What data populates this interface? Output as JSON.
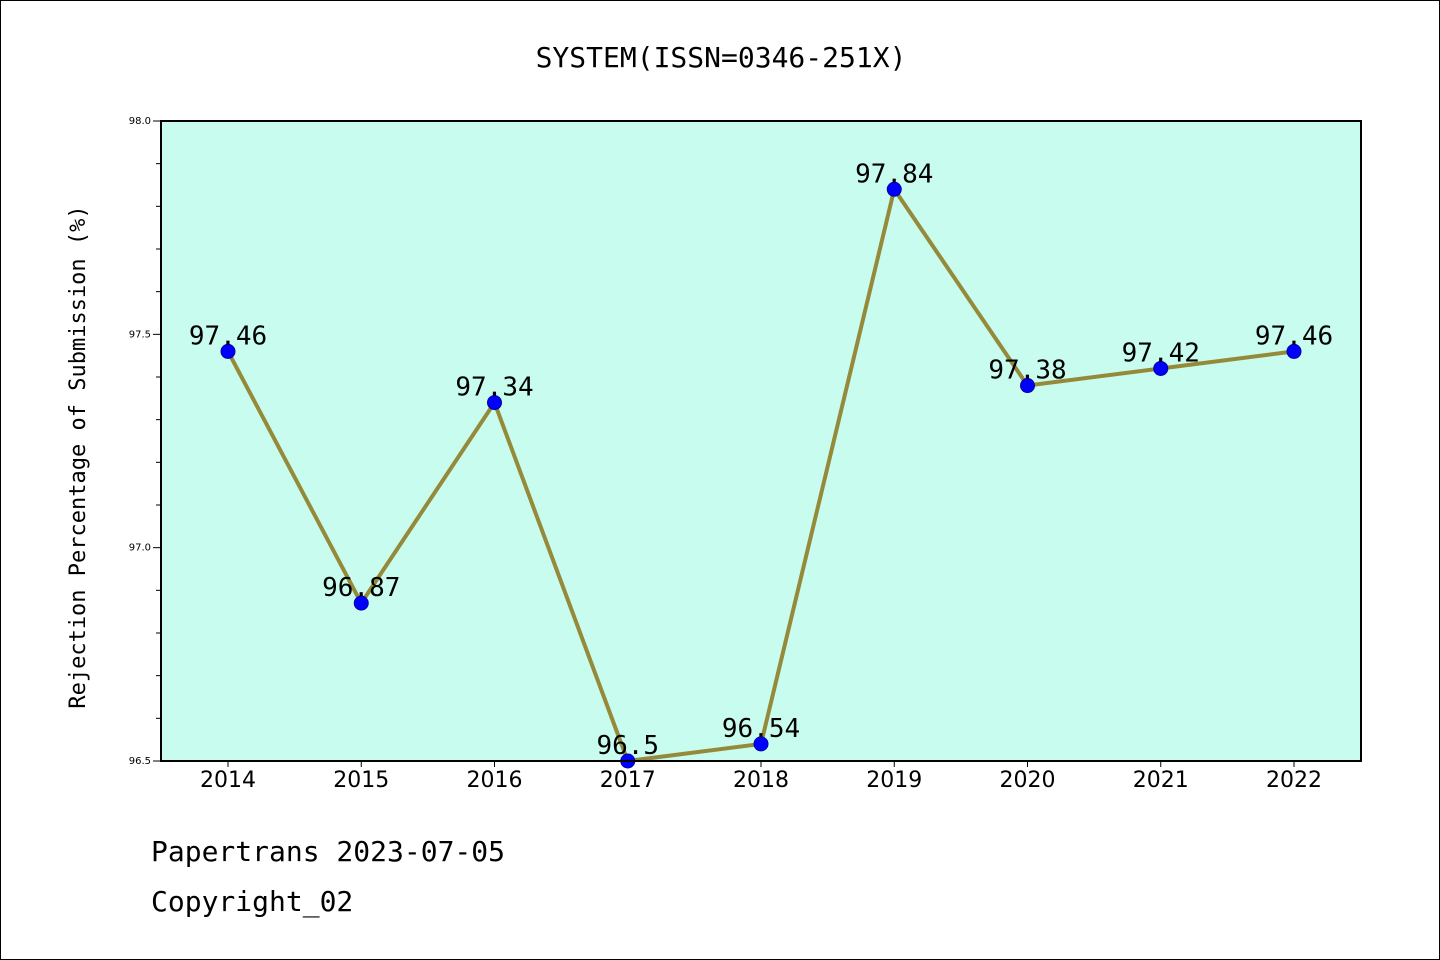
{
  "chart_data": {
    "type": "line",
    "title": "SYSTEM(ISSN=0346-251X)",
    "xlabel": "",
    "ylabel": "Rejection Percentage of Submission (%)",
    "categories": [
      "2014",
      "2015",
      "2016",
      "2017",
      "2018",
      "2019",
      "2020",
      "2021",
      "2022"
    ],
    "series": [
      {
        "values": [
          97.46,
          96.87,
          97.34,
          96.5,
          96.54,
          97.84,
          97.38,
          97.42,
          97.46
        ],
        "data_labels": [
          "97.46",
          "96.87",
          "97.34",
          "96.5",
          "96.54",
          "97.84",
          "97.38",
          "97.42",
          "97.46"
        ]
      }
    ],
    "ylim": [
      96.5,
      98.0
    ],
    "yticks": [
      "96.5",
      "97.0",
      "97.5",
      "98.0"
    ],
    "grid": false,
    "legend": "none",
    "colors": {
      "plot_background": "#c8fcee",
      "line": "#958a3a",
      "marker": "#0000ff",
      "frame": "#000000"
    }
  },
  "footer": {
    "line1": "Papertrans 2023-07-05",
    "line2": "Copyright_02"
  }
}
